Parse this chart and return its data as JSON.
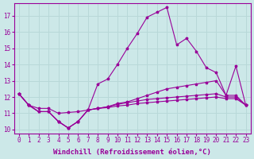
{
  "xlabel": "Windchill (Refroidissement éolien,°C)",
  "hours": [
    0,
    1,
    2,
    3,
    4,
    5,
    6,
    7,
    8,
    9,
    10,
    11,
    12,
    13,
    14,
    15,
    16,
    17,
    18,
    19,
    20,
    21,
    22,
    23
  ],
  "series": [
    [
      12.2,
      11.5,
      11.1,
      11.1,
      10.5,
      10.1,
      10.5,
      11.2,
      12.8,
      13.1,
      14.0,
      15.0,
      15.9,
      16.9,
      17.2,
      17.5,
      15.2,
      15.6,
      14.8,
      13.8,
      13.5,
      12.1,
      13.9,
      11.5
    ],
    [
      12.2,
      11.5,
      11.1,
      11.1,
      10.5,
      10.1,
      10.5,
      11.2,
      11.3,
      11.4,
      11.6,
      11.7,
      11.9,
      12.1,
      12.3,
      12.5,
      12.6,
      12.7,
      12.8,
      12.9,
      13.0,
      12.1,
      12.1,
      11.5
    ],
    [
      12.2,
      11.5,
      11.1,
      11.1,
      10.5,
      10.1,
      10.5,
      11.2,
      11.3,
      11.4,
      11.55,
      11.65,
      11.75,
      11.85,
      11.9,
      11.95,
      12.0,
      12.05,
      12.1,
      12.15,
      12.2,
      12.0,
      12.0,
      11.5
    ],
    [
      12.2,
      11.5,
      11.3,
      11.3,
      11.0,
      11.05,
      11.1,
      11.2,
      11.3,
      11.35,
      11.45,
      11.5,
      11.6,
      11.65,
      11.7,
      11.75,
      11.8,
      11.85,
      11.9,
      11.95,
      12.0,
      11.9,
      11.9,
      11.5
    ]
  ],
  "line_color": "#990099",
  "bg_color": "#cce8e8",
  "grid_color": "#b8d8d8",
  "ylim": [
    9.75,
    17.75
  ],
  "yticks": [
    10,
    11,
    12,
    13,
    14,
    15,
    16,
    17
  ],
  "xlim": [
    -0.5,
    23.5
  ],
  "xticks": [
    0,
    1,
    2,
    3,
    4,
    5,
    6,
    7,
    8,
    9,
    10,
    11,
    12,
    13,
    14,
    15,
    16,
    17,
    18,
    19,
    20,
    21,
    22,
    23
  ],
  "tick_fontsize": 5.5,
  "label_fontsize": 6.5
}
